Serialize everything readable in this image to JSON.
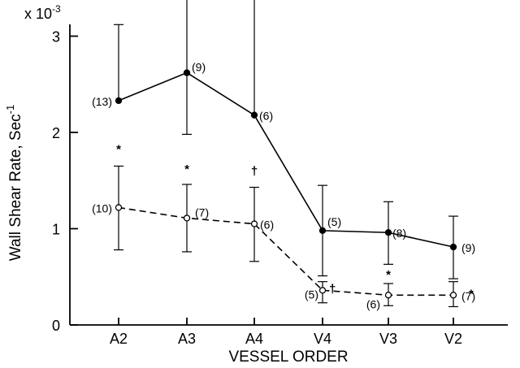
{
  "chart_data": {
    "type": "line",
    "title": "",
    "xlabel": "VESSEL ORDER",
    "ylabel": "Wall Shear Rate, Sec",
    "ylabel_superscript": "-1",
    "y_multiplier_base": "x 10",
    "y_multiplier_exponent": "-3",
    "categories": [
      "A2",
      "A3",
      "A4",
      "V4",
      "V3",
      "V2"
    ],
    "ylim": [
      0,
      3.2
    ],
    "yticks": [
      0,
      1,
      2,
      3
    ],
    "ytick_labels": [
      "0",
      "1",
      "2",
      "3"
    ],
    "grid": false,
    "legend": "none",
    "series": [
      {
        "style": "solid",
        "marker": "filled-circle",
        "values": [
          2.33,
          2.62,
          2.18,
          0.98,
          0.96,
          0.81
        ],
        "error_upper": [
          3.12,
          3.65,
          3.42,
          1.45,
          1.28,
          1.13
        ],
        "error_lower": [
          null,
          1.98,
          null,
          0.51,
          0.63,
          0.48
        ],
        "n_labels": [
          "(13)",
          "(9)",
          "(6)",
          "(5)",
          "(8)",
          "(9)"
        ]
      },
      {
        "style": "dashed",
        "marker": "open-circle",
        "values": [
          1.22,
          1.11,
          1.05,
          0.36,
          0.31,
          0.31
        ],
        "error_upper": [
          1.65,
          1.46,
          1.43,
          0.45,
          0.43,
          0.45
        ],
        "error_lower": [
          0.78,
          0.76,
          0.66,
          0.23,
          0.2,
          0.19
        ],
        "n_labels": [
          "(10)",
          "(7)",
          "(6)",
          "(5)",
          "(6)",
          "(7)"
        ],
        "significance": [
          "*",
          "*",
          "†",
          "†",
          "*",
          "*"
        ]
      }
    ]
  }
}
